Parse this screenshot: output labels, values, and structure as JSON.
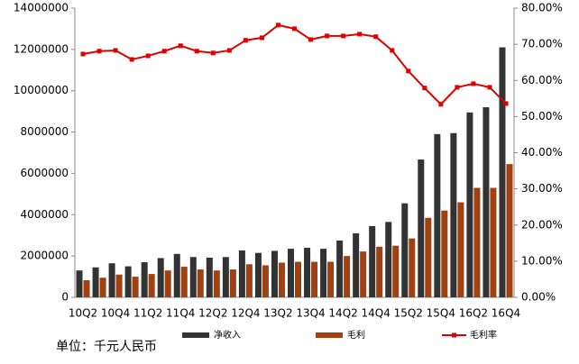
{
  "chart_data": {
    "type": "bar-line",
    "categories": [
      "10Q2",
      null,
      "10Q4",
      null,
      "11Q2",
      null,
      "11Q4",
      null,
      "12Q2",
      null,
      "12Q4",
      null,
      "13Q2",
      null,
      "13Q4",
      null,
      "14Q2",
      null,
      "14Q4",
      null,
      "15Q2",
      null,
      "15Q4",
      null,
      "16Q2",
      null,
      "16Q4"
    ],
    "series": [
      {
        "name": "净收入",
        "type": "bar",
        "color": "#333333",
        "values": [
          1300000,
          1450000,
          1650000,
          1500000,
          1700000,
          1900000,
          2100000,
          1950000,
          1920000,
          1950000,
          2270000,
          2150000,
          2250000,
          2350000,
          2400000,
          2350000,
          2750000,
          3100000,
          3450000,
          3650000,
          4550000,
          6670000,
          7900000,
          7950000,
          8950000,
          9200000,
          12100000
        ]
      },
      {
        "name": "毛利",
        "type": "bar",
        "color": "#a3400e",
        "values": [
          830000,
          950000,
          1100000,
          1000000,
          1130000,
          1300000,
          1480000,
          1350000,
          1300000,
          1350000,
          1600000,
          1550000,
          1680000,
          1720000,
          1720000,
          1720000,
          2000000,
          2220000,
          2450000,
          2500000,
          2850000,
          3850000,
          4200000,
          4600000,
          5300000,
          5300000,
          6450000
        ]
      },
      {
        "name": "毛利率",
        "type": "line",
        "axis": "y2",
        "color": "#e00000",
        "values": [
          67.3,
          68.1,
          68.3,
          65.8,
          66.8,
          68.1,
          69.6,
          68.1,
          67.6,
          68.3,
          71.1,
          71.8,
          75.3,
          74.3,
          71.3,
          72.3,
          72.3,
          72.8,
          72.1,
          68.3,
          62.6,
          57.9,
          53.4,
          58.1,
          59.1,
          58.1,
          53.6
        ]
      }
    ],
    "ylim": [
      0,
      14000000
    ],
    "yticks": [
      0,
      2000000,
      4000000,
      6000000,
      8000000,
      10000000,
      12000000,
      14000000
    ],
    "y2lim": [
      0,
      80
    ],
    "y2ticks": [
      {
        "value": 0,
        "label": "0.00%"
      },
      {
        "value": 10,
        "label": "10.00%"
      },
      {
        "value": 20,
        "label": "20.00%"
      },
      {
        "value": 30,
        "label": "30.00%"
      },
      {
        "value": 40,
        "label": "40.00%"
      },
      {
        "value": 50,
        "label": "50.00%"
      },
      {
        "value": 60,
        "label": "60.00%"
      },
      {
        "value": 70,
        "label": "70.00%"
      },
      {
        "value": 80,
        "label": "80.00%"
      }
    ],
    "grid": false,
    "legend": "bottom",
    "note": "单位：千元人民币"
  }
}
